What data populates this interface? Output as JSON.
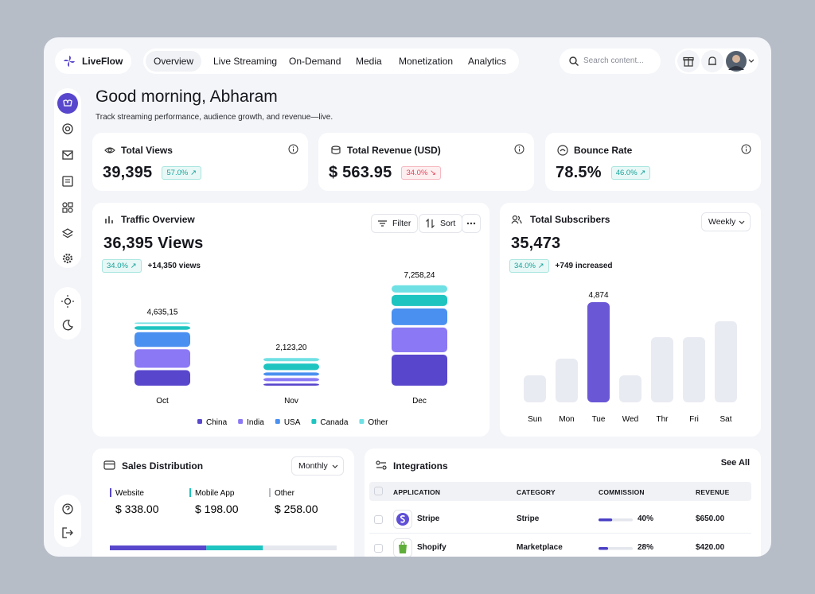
{
  "header": {
    "brand": "LiveFlow",
    "nav": [
      "Overview",
      "Live Streaming",
      "On-Demand",
      "Media",
      "Monetization",
      "Analytics"
    ],
    "search_placeholder": "Search content..."
  },
  "greeting": {
    "title": "Good morning, Abharam",
    "subtitle": "Track streaming performance, audience growth, and revenue—live."
  },
  "stats": [
    {
      "label": "Total Views",
      "value": "39,395",
      "change": "57.0%",
      "trend": "up"
    },
    {
      "label": "Total Revenue (USD)",
      "value": "$ 563.95",
      "change": "34.0%",
      "trend": "down"
    },
    {
      "label": "Bounce Rate",
      "value": "78.5%",
      "change": "46.0%",
      "trend": "up"
    }
  ],
  "chart_data": [
    {
      "type": "stacked_bar",
      "title": "Traffic Overview",
      "buttons": [
        "Filter",
        "Sort"
      ],
      "headline": "36,395 Views",
      "change": "34.0%",
      "change_note": "+14,350 views",
      "categories": [
        "Oct",
        "Nov",
        "Dec"
      ],
      "total_labels": [
        "4,635,15",
        "2,123,20",
        "7,258,24"
      ],
      "series": [
        {
          "name": "China",
          "color": "#5847cc",
          "values": [
            1264,
            315,
            2363
          ]
        },
        {
          "name": "India",
          "color": "#8b78f5",
          "values": [
            1475,
            393,
            1913
          ]
        },
        {
          "name": "USA",
          "color": "#4a90f0",
          "values": [
            1211,
            393,
            1350
          ]
        },
        {
          "name": "Canada",
          "color": "#1ec4c0",
          "values": [
            421,
            629,
            956
          ]
        },
        {
          "name": "Other",
          "color": "#6fe0e4",
          "values": [
            264,
            393,
            676
          ]
        }
      ]
    },
    {
      "type": "bar",
      "title": "Total Subscribers",
      "period": "Weekly",
      "headline": "35,473",
      "change": "34.0%",
      "change_note": "+749 increased",
      "categories": [
        "Sun",
        "Mon",
        "Tue",
        "Wed",
        "Thr",
        "Fri",
        "Sat"
      ],
      "values": [
        1315,
        2128,
        4874,
        1315,
        3172,
        3172,
        3946
      ],
      "value_labels": [
        null,
        null,
        "4,874",
        null,
        null,
        null,
        null
      ],
      "colors": [
        "#e9ebf2",
        "#e9ebf2",
        "#6a57d6",
        "#e9ebf2",
        "#e9ebf2",
        "#e9ebf2",
        "#e9ebf2"
      ]
    }
  ],
  "sales": {
    "title": "Sales Distribution",
    "period": "Monthly",
    "items": [
      {
        "name": "Website",
        "value": 338,
        "label": "$ 338.00",
        "color": "#5847cc"
      },
      {
        "name": "Mobile App",
        "value": 198,
        "label": "$ 198.00",
        "color": "#1ec4c0"
      },
      {
        "name": "Other",
        "value": 258,
        "label": "$ 258.00",
        "color": "#e6e8ef"
      }
    ]
  },
  "integrations": {
    "title": "Integrations",
    "see_all": "See All",
    "columns": [
      "APPLICATION",
      "CATEGORY",
      "COMMISSION",
      "REVENUE"
    ],
    "rows": [
      {
        "application": "Stripe",
        "category": "Stripe",
        "commission": {
          "value": 40,
          "label": "40%"
        },
        "revenue": "$650.00"
      },
      {
        "application": "Shopify",
        "category": "Marketplace",
        "commission": {
          "value": 28,
          "label": "28%"
        },
        "revenue": "$420.00"
      }
    ]
  }
}
